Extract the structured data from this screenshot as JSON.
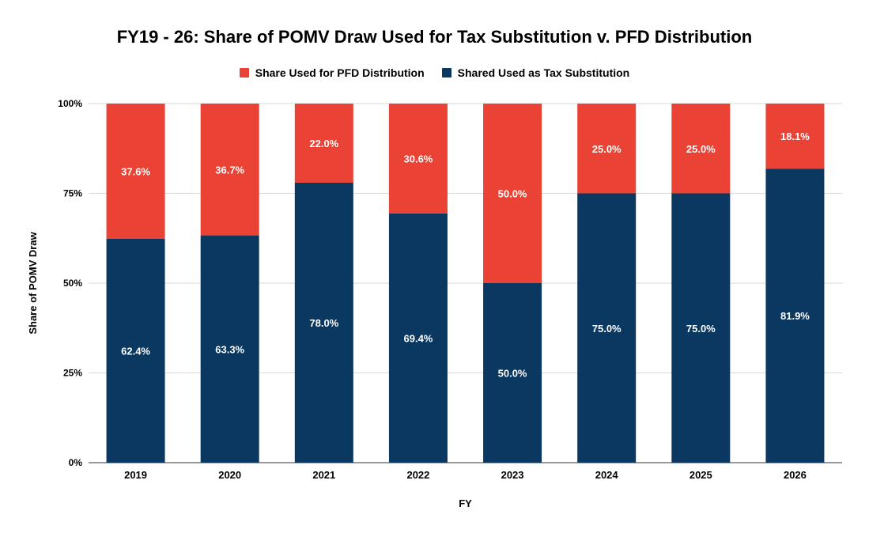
{
  "chart_data": {
    "type": "bar",
    "stacked": true,
    "title": "FY19 - 26: Share of POMV Draw Used for Tax Substitution v. PFD Distribution",
    "xlabel": "FY",
    "ylabel": "Share of POMV Draw",
    "ylim": [
      0,
      100
    ],
    "yticks": [
      "0%",
      "25%",
      "50%",
      "75%",
      "100%"
    ],
    "ytick_values": [
      0,
      25,
      50,
      75,
      100
    ],
    "grid": true,
    "legend_position": "top",
    "categories": [
      "2019",
      "2020",
      "2021",
      "2022",
      "2023",
      "2024",
      "2025",
      "2026"
    ],
    "series": [
      {
        "name": "Shared Used as Tax Substitution",
        "color": "#0b3861",
        "values": [
          62.4,
          63.3,
          78.0,
          69.4,
          50.0,
          75.0,
          75.0,
          81.9
        ],
        "labels": [
          "62.4%",
          "63.3%",
          "78.0%",
          "69.4%",
          "50.0%",
          "75.0%",
          "75.0%",
          "81.9%"
        ]
      },
      {
        "name": "Share Used for PFD Distribution",
        "color": "#ea4335",
        "values": [
          37.6,
          36.7,
          22.0,
          30.6,
          50.0,
          25.0,
          25.0,
          18.1
        ],
        "labels": [
          "37.6%",
          "36.7%",
          "22.0%",
          "30.6%",
          "50.0%",
          "25.0%",
          "25.0%",
          "18.1%"
        ]
      }
    ],
    "legend_order": [
      "Share Used for PFD Distribution",
      "Shared Used as Tax Substitution"
    ]
  }
}
